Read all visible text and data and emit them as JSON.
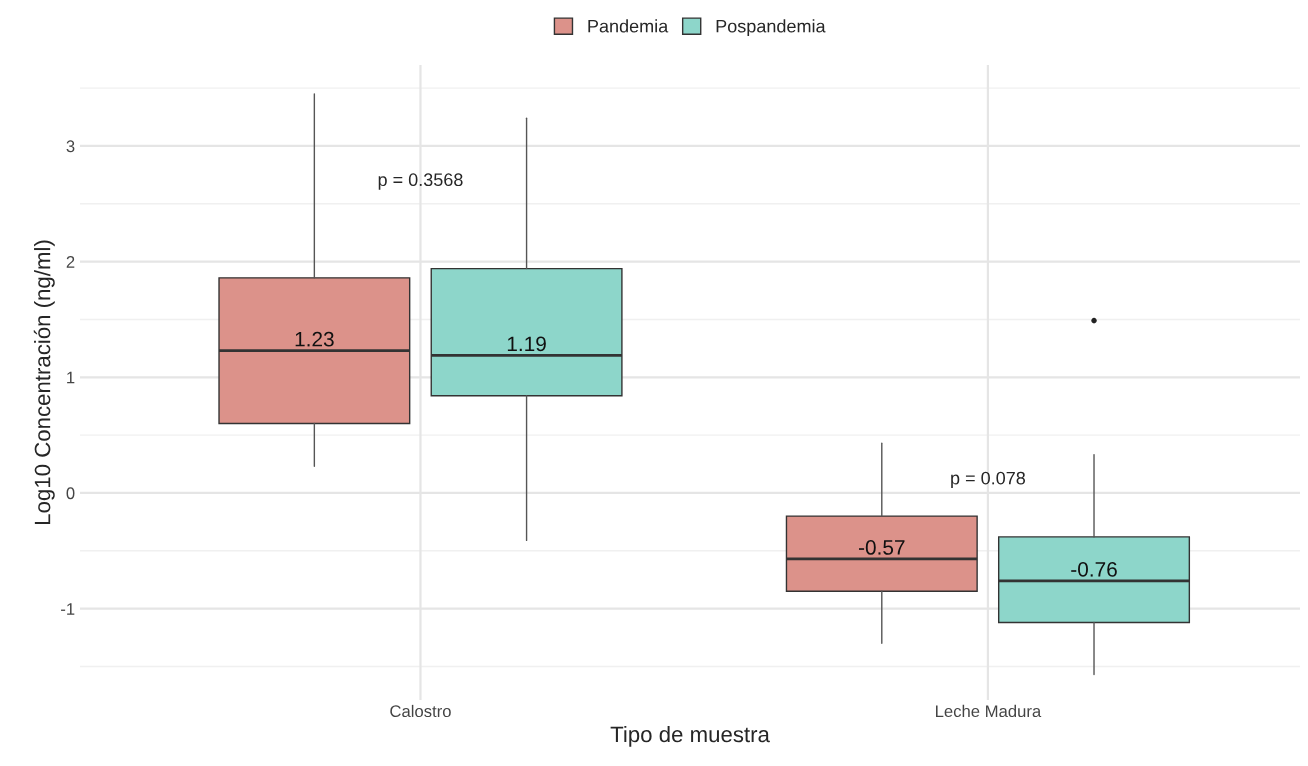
{
  "chart_data": {
    "type": "box",
    "xlabel": "Tipo de muestra",
    "ylabel": "Log10 Concentración (ng/ml)",
    "categories": [
      "Calostro",
      "Leche Madura"
    ],
    "series": [
      {
        "name": "Pandemia",
        "color": "#dc928a",
        "value_labels": [
          "1.23",
          "-0.57"
        ],
        "boxes": [
          {
            "low": 0.23,
            "q1": 0.6,
            "median": 1.23,
            "q3": 1.86,
            "high": 3.45
          },
          {
            "low": -1.3,
            "q1": -0.85,
            "median": -0.57,
            "q3": -0.2,
            "high": 0.43
          }
        ]
      },
      {
        "name": "Pospandemia",
        "color": "#8dd6ca",
        "value_labels": [
          "1.19",
          "-0.76"
        ],
        "boxes": [
          {
            "low": -0.41,
            "q1": 0.84,
            "median": 1.19,
            "q3": 1.94,
            "high": 3.24
          },
          {
            "low": -1.57,
            "q1": -1.12,
            "median": -0.76,
            "q3": -0.38,
            "high": 0.33,
            "outliers": [
              1.49
            ]
          }
        ]
      }
    ],
    "ylim": [
      -1.79,
      3.7
    ],
    "yticks": [
      -1,
      0,
      1,
      2,
      3
    ],
    "grid": true,
    "legend": "top",
    "annotations": [
      "p = 0.3568",
      "p = 0.078"
    ]
  }
}
